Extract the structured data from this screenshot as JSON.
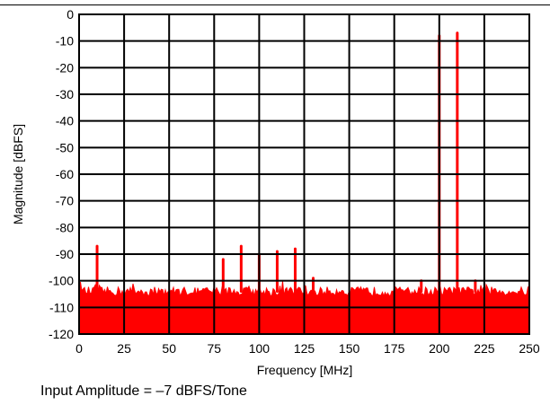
{
  "chart_data": {
    "type": "line",
    "title": "",
    "xlabel": "Frequency [MHz]",
    "ylabel": "Magnitude [dBFS]",
    "xlim": [
      0,
      250
    ],
    "ylim": [
      -120,
      0
    ],
    "x_ticks": [
      0,
      25,
      50,
      75,
      100,
      125,
      150,
      175,
      200,
      225,
      250
    ],
    "y_ticks": [
      0,
      -10,
      -20,
      -30,
      -40,
      -50,
      -60,
      -70,
      -80,
      -90,
      -100,
      -110,
      -120
    ],
    "grid": true,
    "series": [
      {
        "name": "",
        "color": "#ff0000",
        "noise_floor_dbfs": -104,
        "spurs": [
          {
            "x": 10,
            "y": -87
          },
          {
            "x": 80,
            "y": -92
          },
          {
            "x": 90,
            "y": -87
          },
          {
            "x": 100,
            "y": -90
          },
          {
            "x": 110,
            "y": -89
          },
          {
            "x": 120,
            "y": -88
          },
          {
            "x": 130,
            "y": -99
          },
          {
            "x": 190,
            "y": -100
          },
          {
            "x": 200,
            "y": -8
          },
          {
            "x": 210,
            "y": -7
          },
          {
            "x": 220,
            "y": -100
          }
        ]
      }
    ]
  },
  "caption": "Input Amplitude = –7 dBFS/Tone"
}
